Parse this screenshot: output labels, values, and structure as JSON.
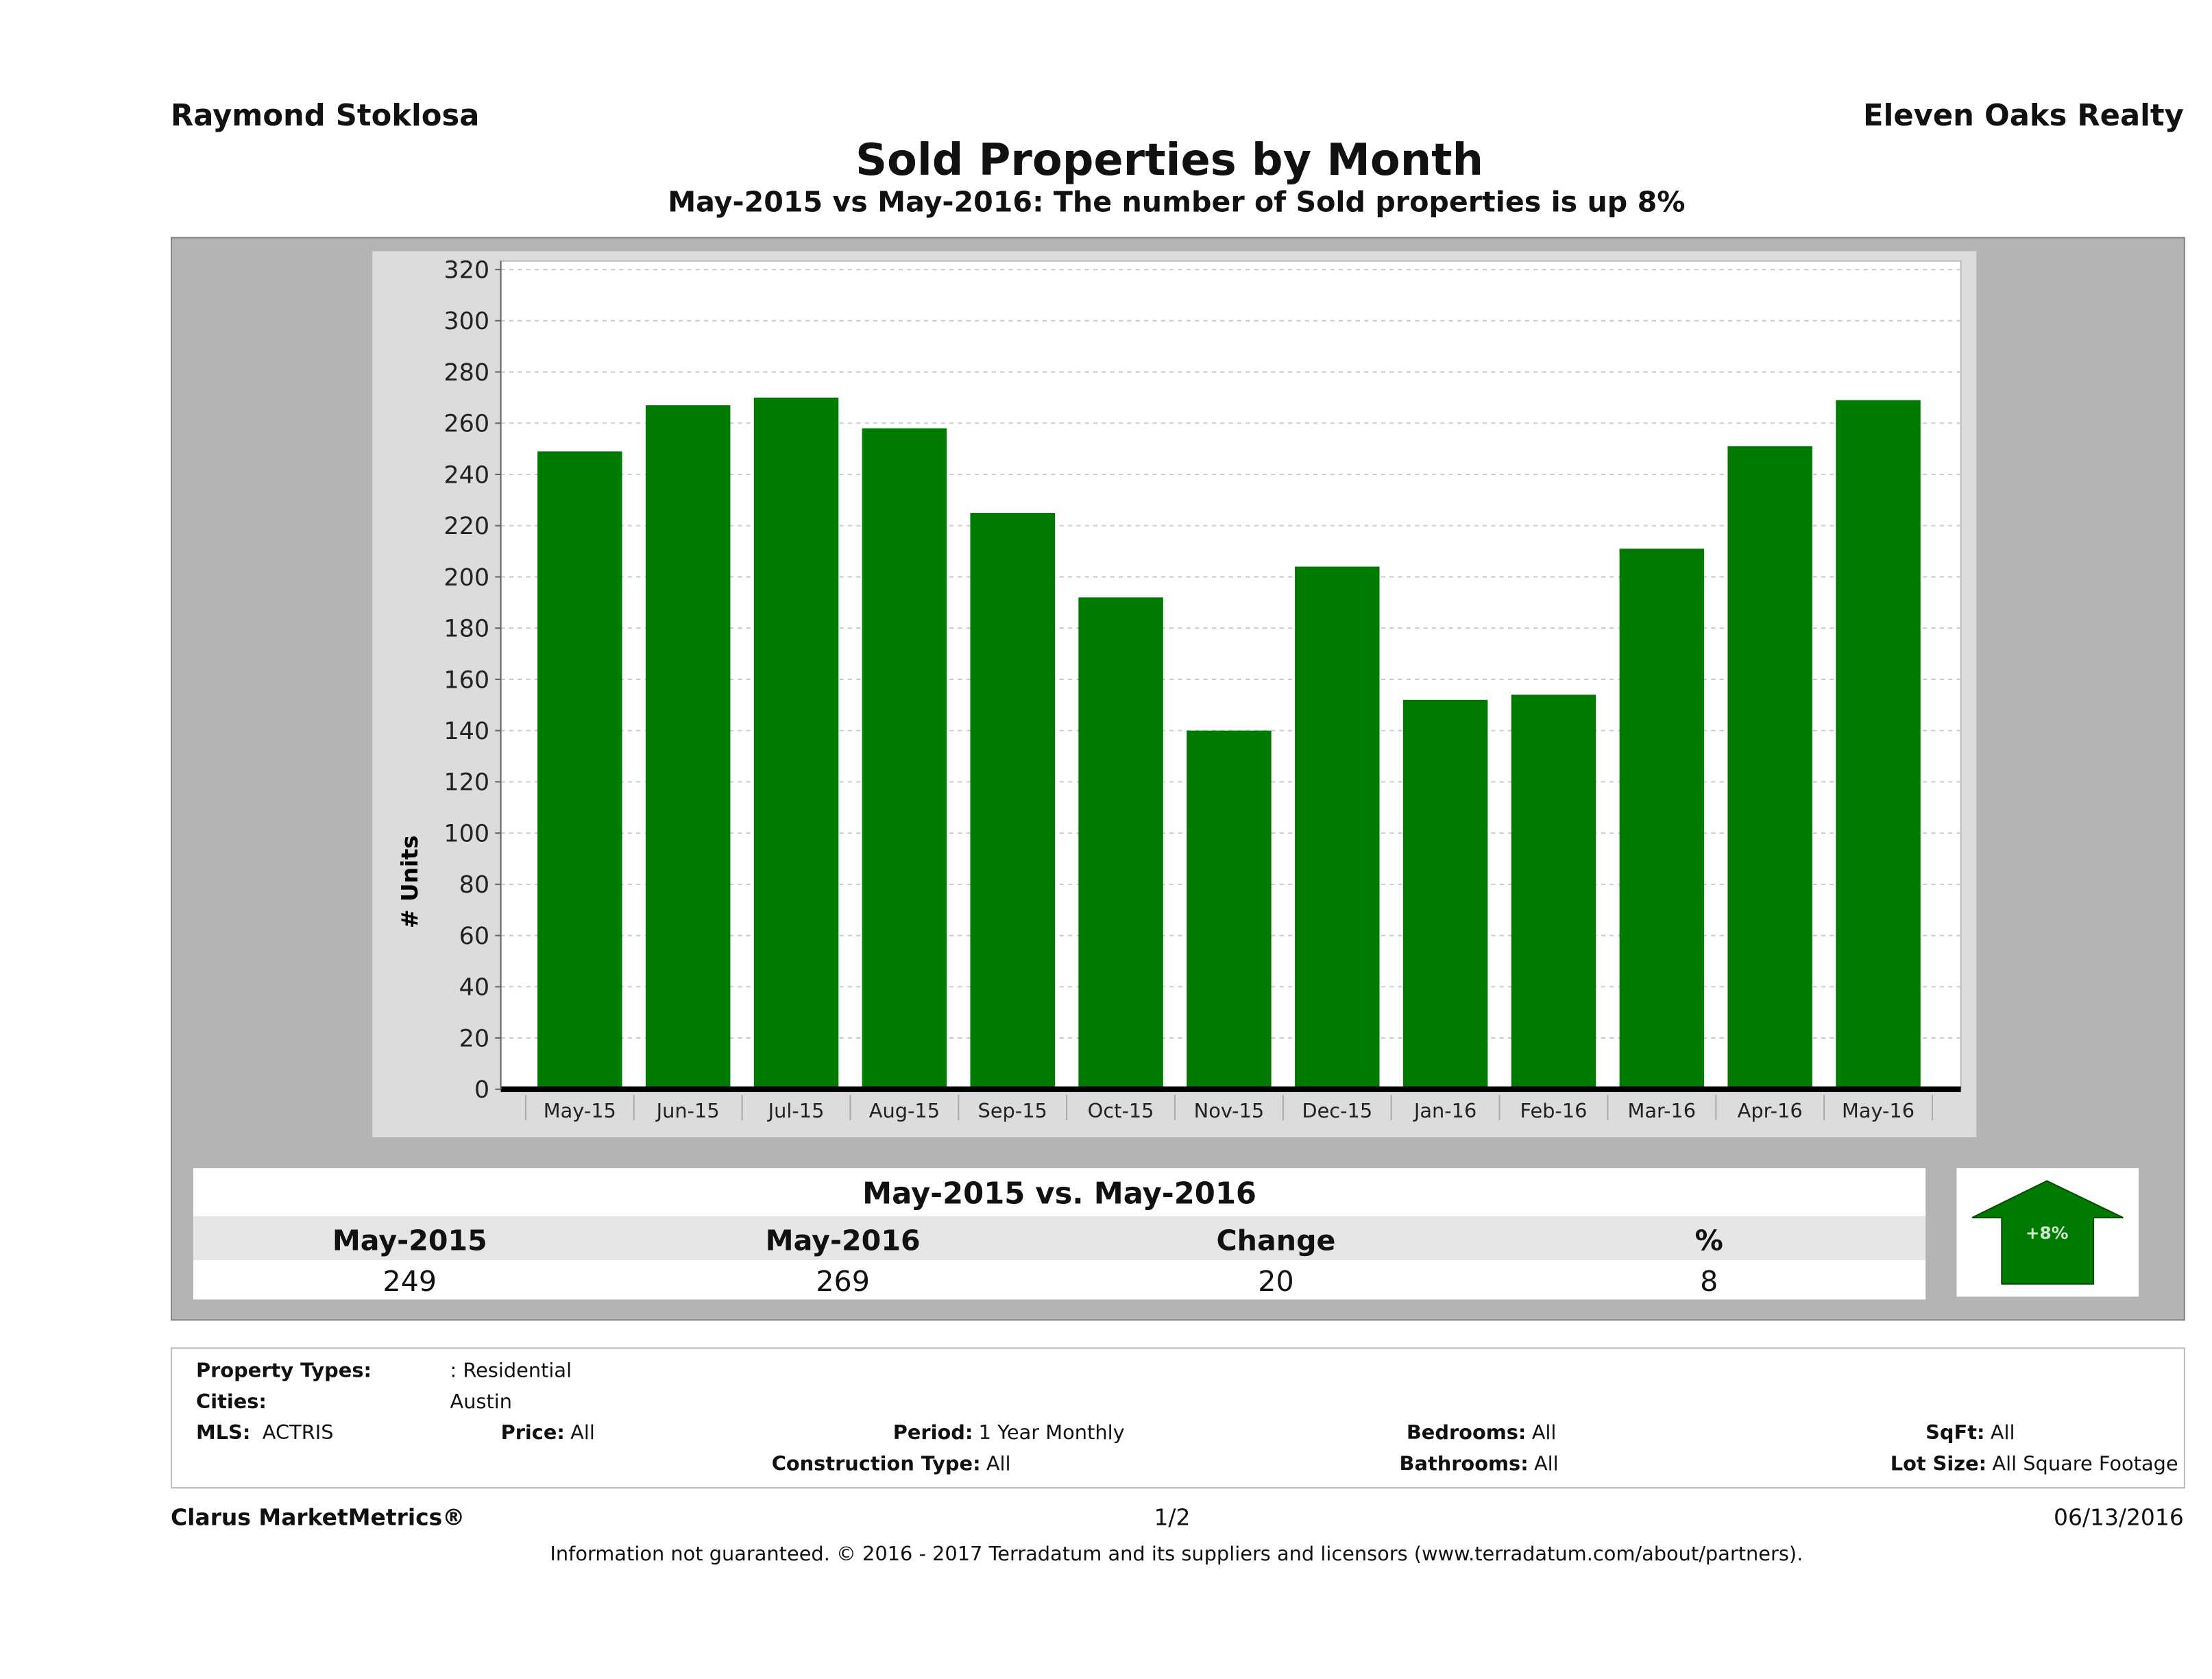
{
  "header": {
    "agent": "Raymond Stoklosa",
    "company": "Eleven Oaks Realty",
    "title": "Sold Properties by Month",
    "subtitle": "May-2015 vs May-2016: The number of Sold  properties is up 8%"
  },
  "chart_data": {
    "type": "bar",
    "ylabel": "# Units",
    "xlabel": "",
    "ylim": [
      0,
      320
    ],
    "yticks": [
      0,
      20,
      40,
      60,
      80,
      100,
      120,
      140,
      160,
      180,
      200,
      220,
      240,
      260,
      280,
      300,
      320
    ],
    "grid": true,
    "bar_color": "#007a00",
    "categories": [
      "May-15",
      "Jun-15",
      "Jul-15",
      "Aug-15",
      "Sep-15",
      "Oct-15",
      "Nov-15",
      "Dec-15",
      "Jan-16",
      "Feb-16",
      "Mar-16",
      "Apr-16",
      "May-16"
    ],
    "values": [
      249,
      267,
      270,
      258,
      225,
      192,
      140,
      204,
      152,
      154,
      211,
      251,
      269
    ]
  },
  "summary": {
    "title": "May-2015 vs. May-2016",
    "headers": [
      "May-2015",
      "May-2016",
      "Change",
      "%"
    ],
    "values": [
      "249",
      "269",
      "20",
      "8"
    ],
    "badge": "+8%",
    "badge_color": "#007a00",
    "badge_icon": "arrow-up-icon"
  },
  "filters": {
    "property_types_label": "Property Types:",
    "property_types": ": Residential",
    "cities_label": "Cities:",
    "cities": "Austin",
    "mls_label": "MLS:",
    "mls": "ACTRIS",
    "price_label": "Price:",
    "price": "All",
    "period_label": "Period:",
    "period": "1 Year Monthly",
    "bedrooms_label": "Bedrooms:",
    "bedrooms": "All",
    "sqft_label": "SqFt:",
    "sqft": "All",
    "construction_label": "Construction Type:",
    "construction": "All",
    "bathrooms_label": "Bathrooms:",
    "bathrooms": "All",
    "lot_label": "Lot Size:",
    "lot": "All Square Footage"
  },
  "footer": {
    "brand": "Clarus MarketMetrics®",
    "page": "1/2",
    "date": "06/13/2016",
    "disclaimer": "Information not guaranteed. © 2016 - 2017 Terradatum and its suppliers and licensors (www.terradatum.com/about/partners)."
  }
}
